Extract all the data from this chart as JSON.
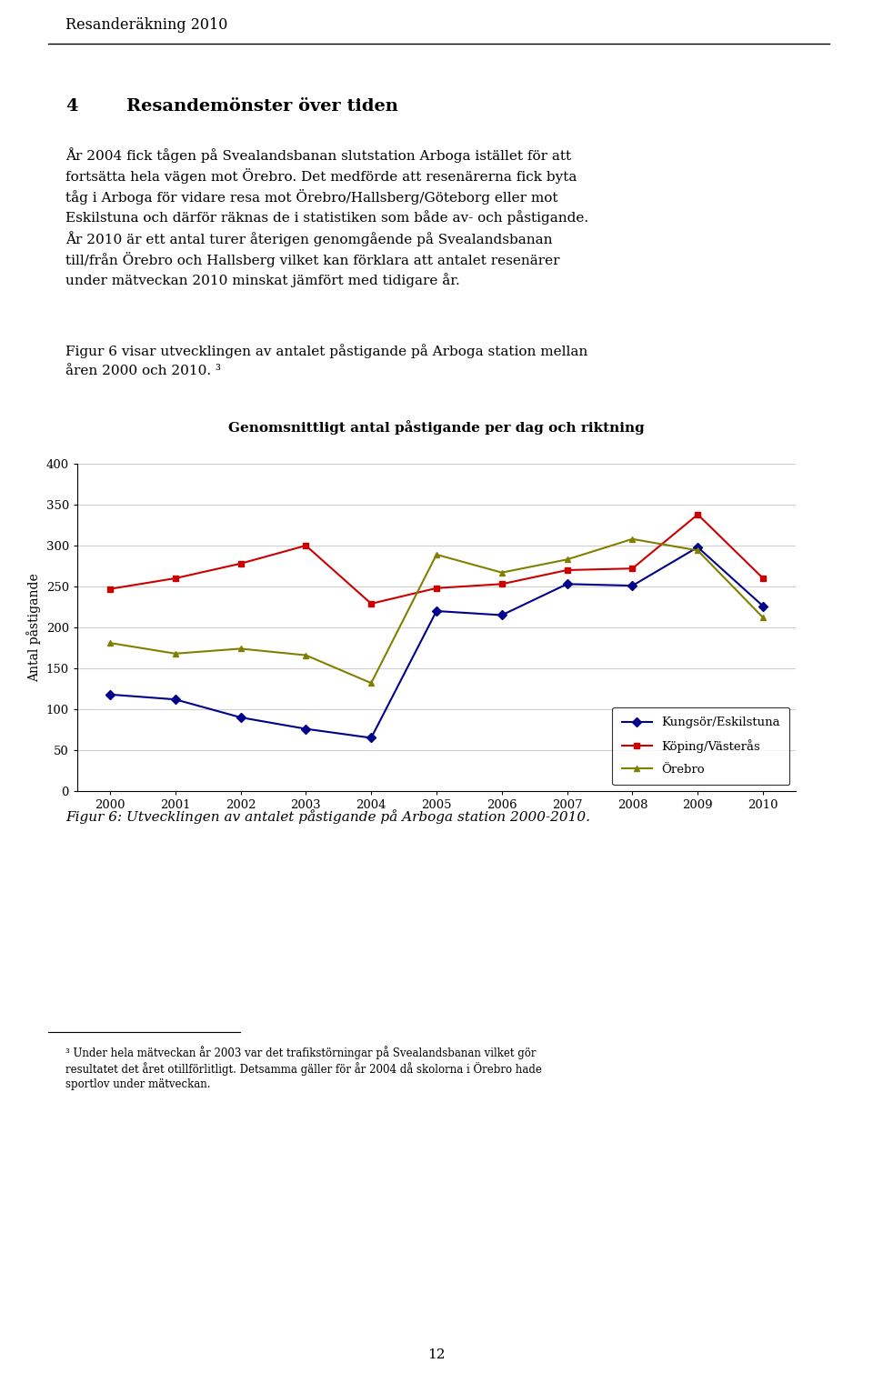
{
  "title": "Genomsnittligt antal påstigande per dag och riktning",
  "ylabel": "Antal påstigande",
  "years": [
    2000,
    2001,
    2002,
    2003,
    2004,
    2005,
    2006,
    2007,
    2008,
    2009,
    2010
  ],
  "series": [
    {
      "name": "Kungsör/Eskilstuna",
      "values": [
        118,
        112,
        90,
        76,
        65,
        220,
        215,
        253,
        251,
        298,
        226
      ],
      "color": "#00008B",
      "marker": "D",
      "linewidth": 1.5
    },
    {
      "name": "Köping/Västerås",
      "values": [
        247,
        260,
        278,
        300,
        229,
        248,
        253,
        270,
        272,
        338,
        260
      ],
      "color": "#CC0000",
      "marker": "s",
      "linewidth": 1.5
    },
    {
      "name": "Örebro",
      "values": [
        181,
        168,
        174,
        166,
        132,
        289,
        267,
        283,
        308,
        294,
        212
      ],
      "color": "#808000",
      "marker": "^",
      "linewidth": 1.5
    }
  ],
  "ylim": [
    0,
    400
  ],
  "yticks": [
    0,
    50,
    100,
    150,
    200,
    250,
    300,
    350,
    400
  ],
  "xlim": [
    1999.5,
    2010.5
  ],
  "page_title": "Resanderäkning 2010",
  "caption": "Figur 6: Utvecklingen av antalet påstigande på Arboga station 2000-2010.",
  "footnote_line1": "³ Under hela mätveckan år 2003 var det trafikstörningar på Svealandsbanan vilket gör",
  "footnote_line2": "resultatet det året otillförlitligt. Detsamma gäller för år 2004 då skolorna i Örebro hade",
  "footnote_line3": "sportlov under mätveckan.",
  "page_number": "12",
  "background_color": "#ffffff",
  "grid_color": "#d0d0d0"
}
